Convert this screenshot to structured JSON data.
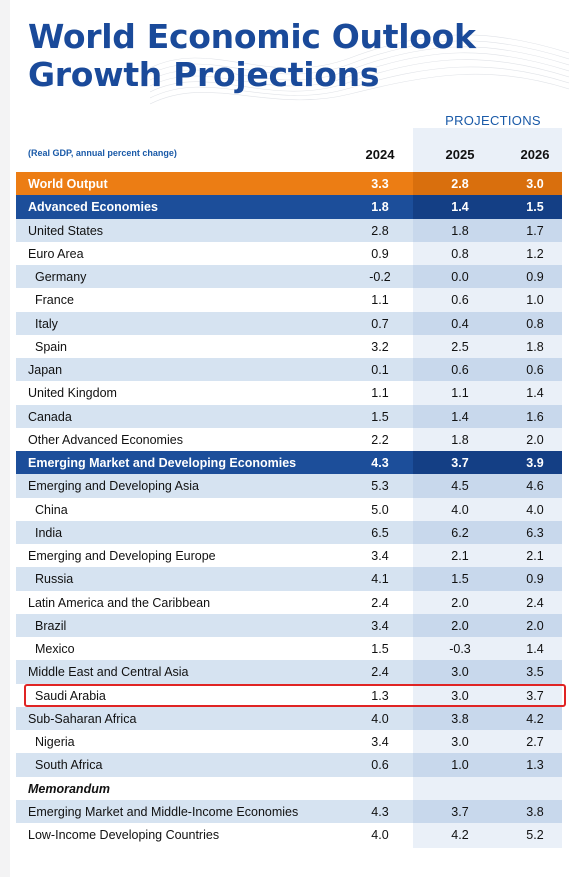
{
  "title_line1": "World Economic Outlook",
  "title_line2": "Growth Projections",
  "projections_label": "PROJECTIONS",
  "note": "(Real GDP, annual percent change)",
  "years": [
    "2024",
    "2025",
    "2026"
  ],
  "colors": {
    "title": "#1a4a9a",
    "orange": "#ec7d14",
    "blue": "#1c4e9a",
    "light": "#d6e3f1",
    "highlight": "#e02424"
  },
  "rows": [
    {
      "label": "World Output",
      "values": [
        "3.3",
        "2.8",
        "3.0"
      ],
      "style": "orange"
    },
    {
      "label": "Advanced Economies",
      "values": [
        "1.8",
        "1.4",
        "1.5"
      ],
      "style": "blue"
    },
    {
      "label": "United States",
      "values": [
        "2.8",
        "1.8",
        "1.7"
      ],
      "style": "light bold-label"
    },
    {
      "label": "Euro Area",
      "values": [
        "0.9",
        "0.8",
        "1.2"
      ],
      "style": "plain"
    },
    {
      "label": "Germany",
      "values": [
        "-0.2",
        "0.0",
        "0.9"
      ],
      "style": "light sub"
    },
    {
      "label": "France",
      "values": [
        "1.1",
        "0.6",
        "1.0"
      ],
      "style": "plain sub"
    },
    {
      "label": "Italy",
      "values": [
        "0.7",
        "0.4",
        "0.8"
      ],
      "style": "light sub"
    },
    {
      "label": "Spain",
      "values": [
        "3.2",
        "2.5",
        "1.8"
      ],
      "style": "plain sub"
    },
    {
      "label": "Japan",
      "values": [
        "0.1",
        "0.6",
        "0.6"
      ],
      "style": "light"
    },
    {
      "label": "United Kingdom",
      "values": [
        "1.1",
        "1.1",
        "1.4"
      ],
      "style": "plain"
    },
    {
      "label": "Canada",
      "values": [
        "1.5",
        "1.4",
        "1.6"
      ],
      "style": "light"
    },
    {
      "label": "Other Advanced Economies",
      "values": [
        "2.2",
        "1.8",
        "2.0"
      ],
      "style": "plain"
    },
    {
      "label": "Emerging Market and Developing Economies",
      "values": [
        "4.3",
        "3.7",
        "3.9"
      ],
      "style": "blue"
    },
    {
      "label": "Emerging and Developing Asia",
      "values": [
        "5.3",
        "4.5",
        "4.6"
      ],
      "style": "light"
    },
    {
      "label": "China",
      "values": [
        "5.0",
        "4.0",
        "4.0"
      ],
      "style": "plain sub"
    },
    {
      "label": "India",
      "values": [
        "6.5",
        "6.2",
        "6.3"
      ],
      "style": "light sub"
    },
    {
      "label": "Emerging and Developing Europe",
      "values": [
        "3.4",
        "2.1",
        "2.1"
      ],
      "style": "plain"
    },
    {
      "label": "Russia",
      "values": [
        "4.1",
        "1.5",
        "0.9"
      ],
      "style": "light sub"
    },
    {
      "label": "Latin America and the Caribbean",
      "values": [
        "2.4",
        "2.0",
        "2.4"
      ],
      "style": "plain"
    },
    {
      "label": "Brazil",
      "values": [
        "3.4",
        "2.0",
        "2.0"
      ],
      "style": "light sub"
    },
    {
      "label": "Mexico",
      "values": [
        "1.5",
        "-0.3",
        "1.4"
      ],
      "style": "plain sub"
    },
    {
      "label": "Middle East and Central Asia",
      "values": [
        "2.4",
        "3.0",
        "3.5"
      ],
      "style": "light"
    },
    {
      "label": "Saudi Arabia",
      "values": [
        "1.3",
        "3.0",
        "3.7"
      ],
      "style": "plain sub"
    },
    {
      "label": "Sub-Saharan Africa",
      "values": [
        "4.0",
        "3.8",
        "4.2"
      ],
      "style": "light"
    },
    {
      "label": "Nigeria",
      "values": [
        "3.4",
        "3.0",
        "2.7"
      ],
      "style": "plain sub"
    },
    {
      "label": "South Africa",
      "values": [
        "0.6",
        "1.0",
        "1.3"
      ],
      "style": "light sub"
    },
    {
      "label": "Memorandum",
      "values": [
        "",
        "",
        ""
      ],
      "style": "plain italic bold"
    },
    {
      "label": "Emerging Market and Middle-Income Economies",
      "values": [
        "4.3",
        "3.7",
        "3.8"
      ],
      "style": "light"
    },
    {
      "label": "Low-Income Developing Countries",
      "values": [
        "4.0",
        "4.2",
        "5.2"
      ],
      "style": "plain"
    }
  ]
}
